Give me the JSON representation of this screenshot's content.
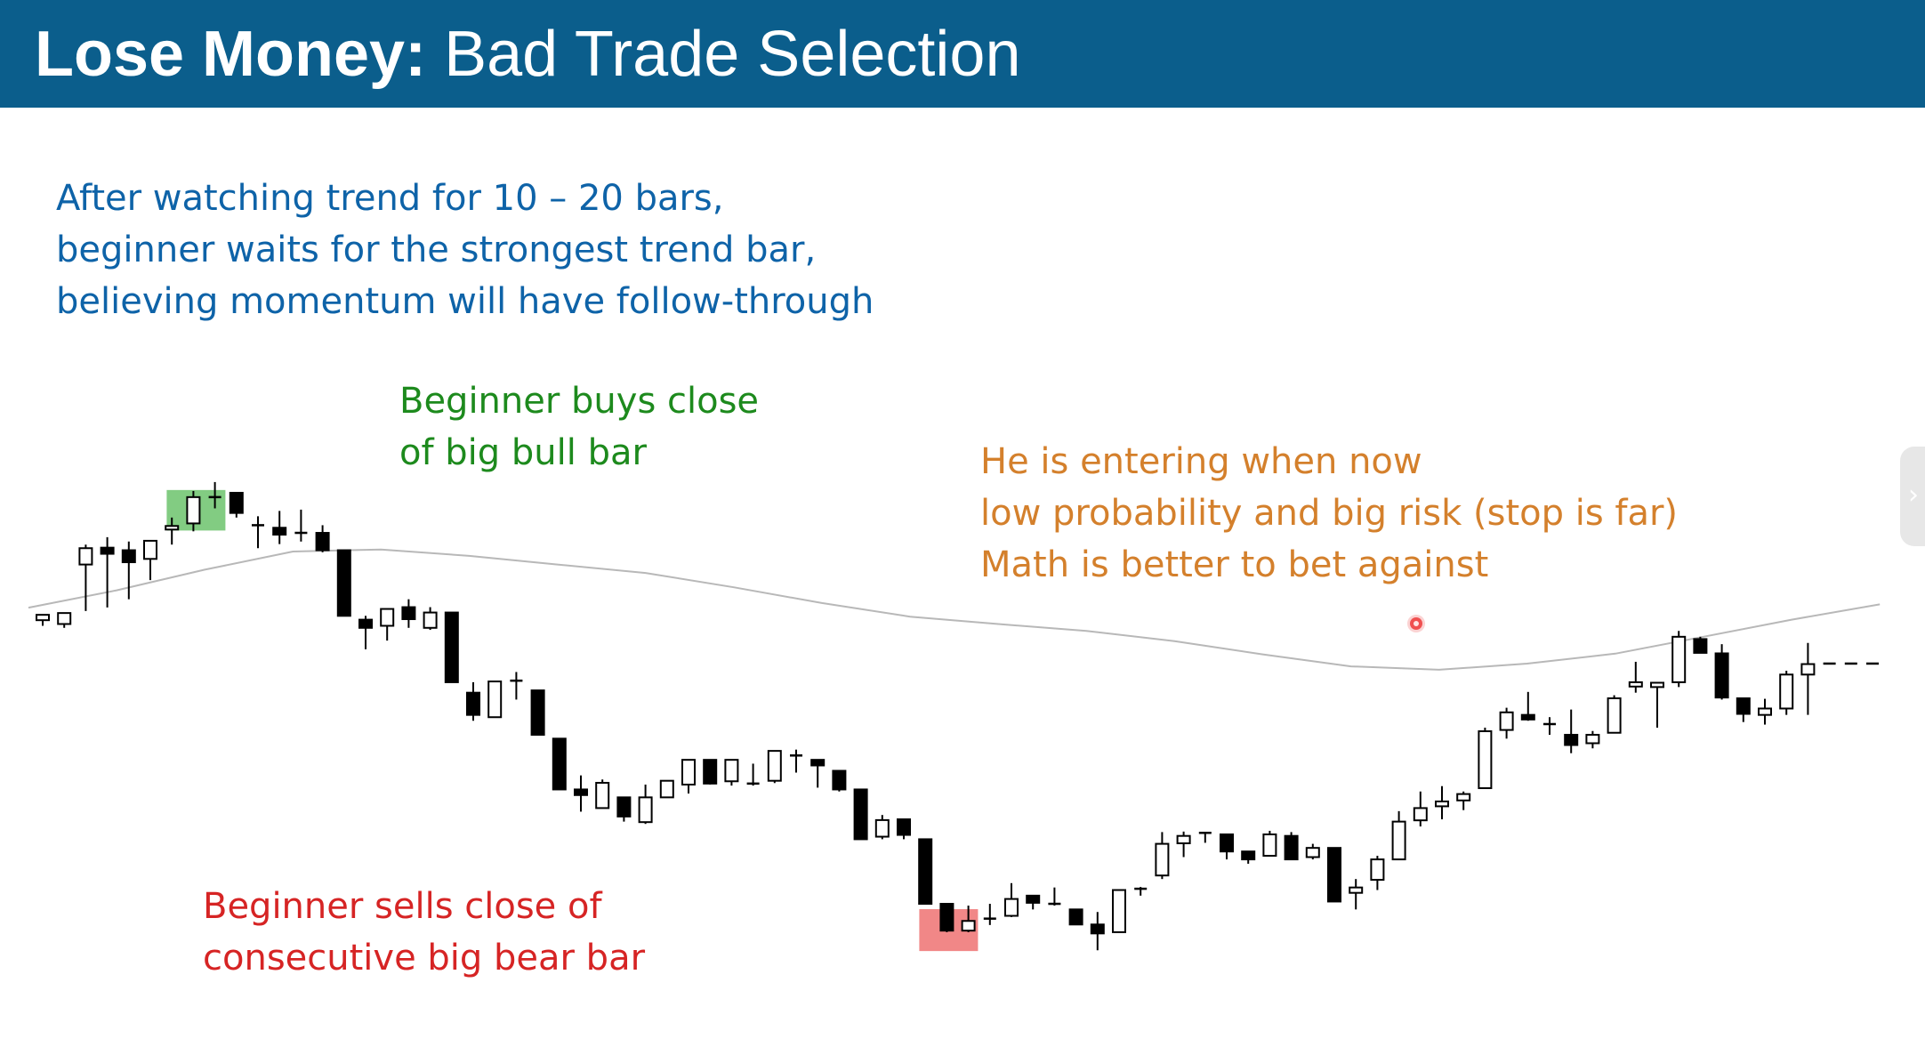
{
  "slide": {
    "title_bold": "Lose Money:",
    "title_rest": " Bad Trade Selection"
  },
  "annotations": {
    "intro": [
      "After watching trend for 10 – 20 bars,",
      "beginner waits for the strongest trend bar,",
      "believing momentum will have follow-through"
    ],
    "buy": [
      "Beginner buys close",
      "of big bull bar"
    ],
    "risk": [
      "He is entering when now",
      "low probability and big risk (stop is far)",
      "Math is better to bet against"
    ],
    "sell": [
      "Beginner sells close of",
      "consecutive big bear bar"
    ]
  },
  "colors": {
    "header_bg": "#0b5e8c",
    "intro_text": "#0e63a8",
    "buy_text": "#1d8a1d",
    "risk_text": "#d4802c",
    "sell_text": "#d62424",
    "buy_highlight": "#6cc36c",
    "sell_highlight": "#f07a7a",
    "moving_average": "#b8b8b8"
  },
  "icons": {
    "side_tab": "chevron-right-icon"
  },
  "chart_data": {
    "type": "candlestick",
    "ylim": [
      0,
      100
    ],
    "moving_average": [
      35.5,
      42.3,
      50.4,
      57.5,
      58.3,
      55.8,
      52.4,
      49.1,
      43.5,
      37.3,
      32.0,
      29.1,
      26.4,
      22.4,
      17.2,
      12.5,
      11.2,
      13.6,
      17.5,
      24.1,
      30.8,
      36.8
    ],
    "candles": [
      {
        "o": 30.6,
        "h": 32.7,
        "l": 28.4,
        "c": 32.7
      },
      {
        "o": 29.1,
        "h": 33.4,
        "l": 27.6,
        "c": 33.4
      },
      {
        "o": 52.4,
        "h": 60.2,
        "l": 34.2,
        "c": 58.8
      },
      {
        "o": 59.0,
        "h": 63.1,
        "l": 35.6,
        "c": 56.6
      },
      {
        "o": 58.0,
        "h": 61.4,
        "l": 38.8,
        "c": 53.3
      },
      {
        "o": 54.6,
        "h": 61.7,
        "l": 46.3,
        "c": 61.7
      },
      {
        "o": 66.1,
        "h": 70.8,
        "l": 60.2,
        "c": 67.5
      },
      {
        "o": 68.5,
        "h": 81.2,
        "l": 65.4,
        "c": 78.8
      },
      {
        "o": 78.3,
        "h": 84.7,
        "l": 74.4,
        "c": 78.8
      },
      {
        "o": 80.5,
        "h": 80.5,
        "l": 70.8,
        "c": 72.6
      },
      {
        "o": 67.8,
        "h": 71.3,
        "l": 58.8,
        "c": 67.3
      },
      {
        "o": 66.8,
        "h": 73.4,
        "l": 60.4,
        "c": 64.1
      },
      {
        "o": 64.8,
        "h": 73.9,
        "l": 61.4,
        "c": 64.3
      },
      {
        "o": 64.8,
        "h": 67.8,
        "l": 57.2,
        "c": 58.0
      },
      {
        "o": 58.0,
        "h": 58.0,
        "l": 32.3,
        "c": 32.3
      },
      {
        "o": 30.8,
        "h": 32.3,
        "l": 19.2,
        "c": 27.6
      },
      {
        "o": 28.4,
        "h": 35.0,
        "l": 22.6,
        "c": 35.0
      },
      {
        "o": 35.7,
        "h": 38.8,
        "l": 27.6,
        "c": 31.0
      },
      {
        "o": 27.6,
        "h": 35.7,
        "l": 26.8,
        "c": 33.6
      },
      {
        "o": 33.6,
        "h": 33.6,
        "l": 6.3,
        "c": 6.3
      },
      {
        "o": 2.2,
        "h": 6.3,
        "l": -8.8,
        "c": -6.5
      },
      {
        "o": -7.4,
        "h": 6.8,
        "l": -7.4,
        "c": 6.6
      },
      {
        "o": 6.9,
        "h": 10.3,
        "l": -0.5,
        "c": 6.1
      },
      {
        "o": 3.1,
        "h": 3.1,
        "l": -14.3,
        "c": -14.3
      },
      {
        "o": -15.8,
        "h": -15.8,
        "l": -35.7,
        "c": -35.7
      },
      {
        "o": -35.7,
        "h": -30.2,
        "l": -44.4,
        "c": -37.9
      },
      {
        "o": -43.0,
        "h": -31.8,
        "l": -43.0,
        "c": -33.1
      },
      {
        "o": -38.8,
        "h": -38.8,
        "l": -48.3,
        "c": -46.3
      },
      {
        "o": -48.5,
        "h": -33.8,
        "l": -49.2,
        "c": -38.8
      },
      {
        "o": -38.8,
        "h": -32.3,
        "l": -38.8,
        "c": -32.3
      },
      {
        "o": -33.8,
        "h": -24.1,
        "l": -37.3,
        "c": -24.1
      },
      {
        "o": -24.1,
        "h": -24.1,
        "l": -33.8,
        "c": -33.4
      },
      {
        "o": -32.5,
        "h": -24.1,
        "l": -34.2,
        "c": -24.1
      },
      {
        "o": -33.8,
        "h": -25.6,
        "l": -34.2,
        "c": -33.4
      },
      {
        "o": -32.3,
        "h": -20.6,
        "l": -33.2,
        "c": -20.6
      },
      {
        "o": -22.4,
        "h": -20.1,
        "l": -29.1,
        "c": -22.6
      },
      {
        "o": -24.1,
        "h": -24.1,
        "l": -35.0,
        "c": -26.3
      },
      {
        "o": -28.4,
        "h": -28.4,
        "l": -36.5,
        "c": -35.7
      },
      {
        "o": -35.7,
        "h": -35.7,
        "l": -55.2,
        "c": -55.2
      },
      {
        "o": -54.2,
        "h": -45.7,
        "l": -55.2,
        "c": -47.7
      },
      {
        "o": -47.4,
        "h": -47.4,
        "l": -55.2,
        "c": -53.5
      },
      {
        "o": -55.2,
        "h": -55.2,
        "l": -80.5,
        "c": -80.5
      },
      {
        "o": -80.5,
        "h": -80.5,
        "l": -91.6,
        "c": -91.0
      },
      {
        "o": -91.0,
        "h": -81.2,
        "l": -91.6,
        "c": -87.2
      },
      {
        "o": -86.3,
        "h": -80.5,
        "l": -88.8,
        "c": -86.3
      },
      {
        "o": -85.2,
        "h": -72.4,
        "l": -85.7,
        "c": -78.6
      },
      {
        "o": -77.3,
        "h": -77.1,
        "l": -82.7,
        "c": -80.1
      },
      {
        "o": -80.5,
        "h": -74.1,
        "l": -81.2,
        "c": -81.2
      },
      {
        "o": -82.7,
        "h": -82.7,
        "l": -88.6,
        "c": -88.6
      },
      {
        "o": -88.6,
        "h": -83.7,
        "l": -98.7,
        "c": -92.1
      },
      {
        "o": -91.6,
        "h": -75.1,
        "l": -91.6,
        "c": -75.1
      },
      {
        "o": -75.1,
        "h": -73.9,
        "l": -77.3,
        "c": -74.6
      },
      {
        "o": -69.4,
        "h": -52.4,
        "l": -70.8,
        "c": -57.0
      },
      {
        "o": -56.8,
        "h": -52.2,
        "l": -62.2,
        "c": -53.9
      },
      {
        "o": -52.7,
        "h": -52.4,
        "l": -56.6,
        "c": -52.7
      },
      {
        "o": -53.3,
        "h": -53.3,
        "l": -63.1,
        "c": -60.0
      },
      {
        "o": -60.0,
        "h": -60.0,
        "l": -64.8,
        "c": -63.1
      },
      {
        "o": -61.7,
        "h": -51.9,
        "l": -61.7,
        "c": -53.3
      },
      {
        "o": -53.9,
        "h": -52.4,
        "l": -63.1,
        "c": -63.1
      },
      {
        "o": -62.2,
        "h": -57.0,
        "l": -63.1,
        "c": -58.6
      },
      {
        "o": -58.6,
        "h": -58.6,
        "l": -79.6,
        "c": -79.6
      },
      {
        "o": -76.2,
        "h": -70.8,
        "l": -82.7,
        "c": -74.1
      },
      {
        "o": -71.1,
        "h": -61.7,
        "l": -75.1,
        "c": -63.1
      },
      {
        "o": -63.1,
        "h": -44.2,
        "l": -63.1,
        "c": -48.3
      },
      {
        "o": -47.8,
        "h": -36.5,
        "l": -50.2,
        "c": -43.0
      },
      {
        "o": -42.3,
        "h": -34.4,
        "l": -47.4,
        "c": -40.4
      },
      {
        "o": -40.0,
        "h": -36.5,
        "l": -43.8,
        "c": -37.5
      },
      {
        "o": -35.2,
        "h": -11.5,
        "l": -35.2,
        "c": -12.9
      },
      {
        "o": -12.4,
        "h": -3.7,
        "l": -15.8,
        "c": -5.5
      },
      {
        "o": -6.5,
        "h": 2.5,
        "l": -8.8,
        "c": -8.3
      },
      {
        "o": -10.8,
        "h": -7.4,
        "l": -14.3,
        "c": -10.1
      },
      {
        "o": -14.3,
        "h": -4.4,
        "l": -21.5,
        "c": -18.3
      },
      {
        "o": -17.6,
        "h": -12.8,
        "l": -19.6,
        "c": -14.3
      },
      {
        "o": -13.5,
        "h": 1.2,
        "l": -13.5,
        "c": 0.0
      },
      {
        "o": 4.6,
        "h": 14.3,
        "l": 2.2,
        "c": 6.3
      },
      {
        "o": 4.4,
        "h": 6.3,
        "l": -11.5,
        "c": 6.1
      },
      {
        "o": 6.3,
        "h": 26.4,
        "l": 4.4,
        "c": 24.1
      },
      {
        "o": 23.2,
        "h": 24.1,
        "l": 17.8,
        "c": 17.8
      },
      {
        "o": 17.6,
        "h": 21.2,
        "l": -0.5,
        "c": 0.3
      },
      {
        "o": 0.0,
        "h": 0.0,
        "l": -9.3,
        "c": -6.1
      },
      {
        "o": -6.5,
        "h": -0.2,
        "l": -10.3,
        "c": -4.0
      },
      {
        "o": -4.0,
        "h": 10.8,
        "l": -6.5,
        "c": 9.3
      },
      {
        "o": 9.3,
        "h": 21.7,
        "l": -6.5,
        "c": 13.4
      },
      {
        "o": 13.6,
        "h": 13.6,
        "l": 13.6,
        "c": 13.6
      },
      {
        "o": 13.6,
        "h": 13.6,
        "l": 13.6,
        "c": 13.6
      },
      {
        "o": 13.6,
        "h": 13.6,
        "l": 13.6,
        "c": 13.6
      }
    ]
  }
}
